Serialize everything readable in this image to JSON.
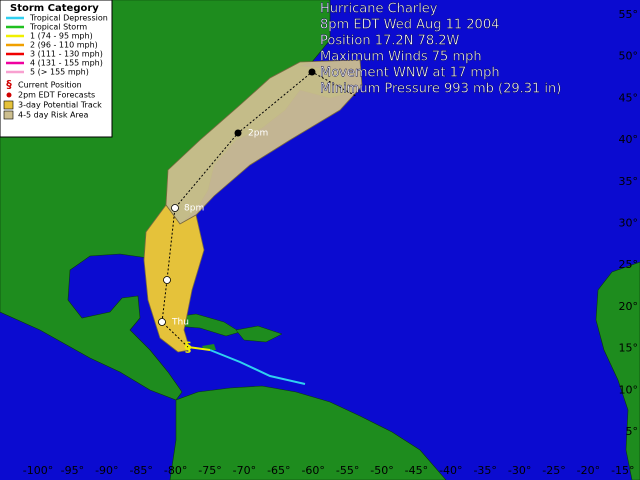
{
  "legend": {
    "title": "Storm Category",
    "items": [
      {
        "label": "Tropical Depression",
        "color": "#30d0f0"
      },
      {
        "label": "Tropical Storm",
        "color": "#20c020"
      },
      {
        "label": "1 (74 - 95 mph)",
        "color": "#f0f000"
      },
      {
        "label": "2 (96 - 110 mph)",
        "color": "#f0a000"
      },
      {
        "label": "3 (111 - 130 mph)",
        "color": "#f00000"
      },
      {
        "label": "4 (131 - 155 mph)",
        "color": "#f000a0"
      },
      {
        "label": "5 (> 155 mph)",
        "color": "#f8a0d0"
      }
    ],
    "symbols": [
      "Current Position",
      "2pm EDT Forecasts",
      "3-day Potential Track",
      "4-5 day Risk Area"
    ]
  },
  "info": [
    "Hurricane Charley",
    "8pm EDT Wed Aug 11 2004",
    "Position 17.2N 78.2W",
    "Maximum Winds 75 mph",
    "Movement WNW at 17 mph",
    "Minimum Pressure 993 mb (29.31 in)"
  ],
  "longitude_labels": [
    "-100°",
    "-95°",
    "-90°",
    "-85°",
    "-80°",
    "-75°",
    "-70°",
    "-65°",
    "-60°",
    "-55°",
    "-50°",
    "-45°",
    "-40°",
    "-35°",
    "-30°",
    "-25°",
    "-20°",
    "-15°"
  ],
  "latitude_labels": [
    "55°",
    "50°",
    "45°",
    "40°",
    "35°",
    "30°",
    "25°",
    "20°",
    "15°",
    "10°",
    "5°"
  ],
  "track_labels": [
    "Thu",
    "8pm",
    "2pm"
  ]
}
